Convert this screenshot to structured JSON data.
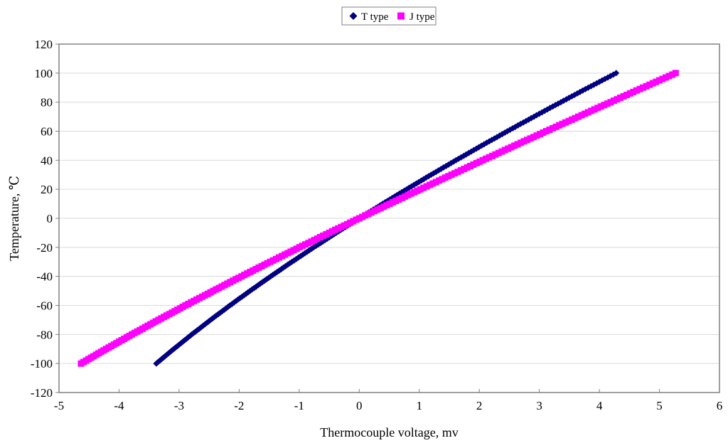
{
  "chart_data": {
    "type": "scatter",
    "title": "",
    "xlabel": "Thermocouple voltage, mv",
    "ylabel": "Temperature, ℃",
    "xlim": [
      -5,
      6
    ],
    "ylim": [
      -120,
      120
    ],
    "x_ticks": [
      -5,
      -4,
      -3,
      -2,
      -1,
      0,
      1,
      2,
      3,
      4,
      5,
      6
    ],
    "y_ticks": [
      -120,
      -100,
      -80,
      -60,
      -40,
      -20,
      0,
      20,
      40,
      60,
      80,
      100,
      120
    ],
    "grid": "horizontal-only",
    "legend_position": "top-center",
    "temperatures_c": [
      -100,
      -90,
      -80,
      -70,
      -60,
      -50,
      -40,
      -30,
      -20,
      -10,
      0,
      10,
      20,
      30,
      40,
      50,
      60,
      70,
      80,
      90,
      100
    ],
    "series": [
      {
        "name": "T type",
        "marker": "diamond",
        "color": "#000080",
        "voltages_mv": [
          -3.379,
          -3.089,
          -2.788,
          -2.476,
          -2.153,
          -1.819,
          -1.475,
          -1.121,
          -0.757,
          -0.383,
          0.0,
          0.391,
          0.79,
          1.196,
          1.612,
          2.036,
          2.468,
          2.909,
          3.358,
          3.814,
          4.279
        ]
      },
      {
        "name": "J type",
        "marker": "square",
        "color": "#FF00FF",
        "voltages_mv": [
          -4.633,
          -4.215,
          -3.786,
          -3.344,
          -2.893,
          -2.431,
          -1.961,
          -1.482,
          -0.995,
          -0.501,
          0.0,
          0.507,
          1.019,
          1.537,
          2.059,
          2.585,
          3.116,
          3.65,
          4.187,
          4.726,
          5.269
        ]
      }
    ]
  },
  "legend": {
    "items": [
      {
        "label": "T type",
        "marker": "diamond",
        "color": "#000080"
      },
      {
        "label": "J type",
        "marker": "square",
        "color": "#FF00FF"
      }
    ]
  },
  "colors": {
    "background": "#FFFFFF",
    "plot_background": "#FFFFFF",
    "frame": "#808080",
    "gridline": "#D9D9D9",
    "tick": "#808080",
    "text": "#000000",
    "t_type": "#000080",
    "j_type": "#FF00FF"
  }
}
